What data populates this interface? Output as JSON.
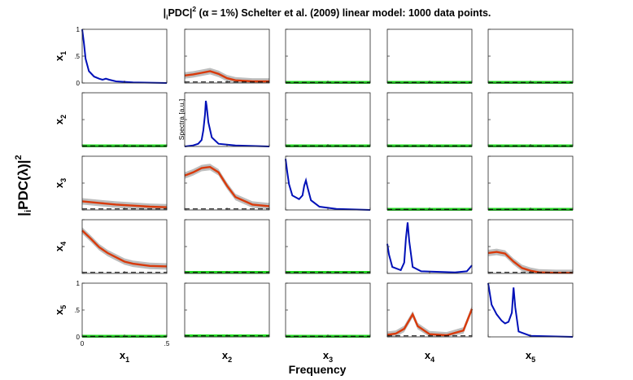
{
  "title": {
    "prefix": "|",
    "sub": "i",
    "mid": "PDC|",
    "sup": "2",
    "rest": " (α = 1%) Schelter et al. (2009) linear model: 1000 data points."
  },
  "ylabel": {
    "pre": "|",
    "sub": "i",
    "main": "PDC(λ)|",
    "sup": "2"
  },
  "xlabel": "Frequency",
  "spectra_label": "Spectra [a.u.]",
  "colors": {
    "pdc": "#d93a0b",
    "ci": "#bdbdbd",
    "spectrum": "#0010b8",
    "not_significant": "#22dd22",
    "threshold": "#000000"
  },
  "chart_data": {
    "type": "line",
    "variables": [
      {
        "base": "x",
        "sub": "1"
      },
      {
        "base": "x",
        "sub": "2"
      },
      {
        "base": "x",
        "sub": "3"
      },
      {
        "base": "x",
        "sub": "4"
      },
      {
        "base": "x",
        "sub": "5"
      }
    ],
    "xlim": [
      0,
      0.5
    ],
    "ylim": [
      0,
      1
    ],
    "xticks": [
      "0",
      ".5"
    ],
    "yticks": [
      "0",
      "0.5",
      "1"
    ],
    "pdc": [
      [
        null,
        [
          [
            0,
            0.14
          ],
          [
            0.05,
            0.16
          ],
          [
            0.1,
            0.19
          ],
          [
            0.15,
            0.22
          ],
          [
            0.2,
            0.17
          ],
          [
            0.25,
            0.09
          ],
          [
            0.3,
            0.05
          ],
          [
            0.4,
            0.03
          ],
          [
            0.5,
            0.03
          ]
        ],
        null,
        null,
        null
      ],
      [
        null,
        null,
        null,
        null,
        null
      ],
      [
        [
          [
            0,
            0.16
          ],
          [
            0.1,
            0.13
          ],
          [
            0.2,
            0.1
          ],
          [
            0.3,
            0.08
          ],
          [
            0.4,
            0.06
          ],
          [
            0.5,
            0.05
          ]
        ],
        [
          [
            0,
            0.64
          ],
          [
            0.05,
            0.7
          ],
          [
            0.1,
            0.78
          ],
          [
            0.15,
            0.8
          ],
          [
            0.2,
            0.7
          ],
          [
            0.25,
            0.45
          ],
          [
            0.3,
            0.24
          ],
          [
            0.4,
            0.1
          ],
          [
            0.5,
            0.07
          ]
        ],
        null,
        null,
        null
      ],
      [
        [
          [
            0,
            0.8
          ],
          [
            0.05,
            0.65
          ],
          [
            0.1,
            0.49
          ],
          [
            0.15,
            0.38
          ],
          [
            0.2,
            0.3
          ],
          [
            0.25,
            0.22
          ],
          [
            0.3,
            0.18
          ],
          [
            0.4,
            0.14
          ],
          [
            0.5,
            0.13
          ]
        ],
        null,
        null,
        null,
        [
          [
            0,
            0.38
          ],
          [
            0.05,
            0.4
          ],
          [
            0.1,
            0.37
          ],
          [
            0.15,
            0.22
          ],
          [
            0.2,
            0.1
          ],
          [
            0.25,
            0.05
          ],
          [
            0.3,
            0.02
          ],
          [
            0.4,
            0.01
          ],
          [
            0.5,
            0.01
          ]
        ]
      ],
      [
        null,
        null,
        null,
        [
          [
            0,
            0.04
          ],
          [
            0.05,
            0.06
          ],
          [
            0.1,
            0.15
          ],
          [
            0.15,
            0.42
          ],
          [
            0.18,
            0.2
          ],
          [
            0.25,
            0.05
          ],
          [
            0.35,
            0.03
          ],
          [
            0.45,
            0.12
          ],
          [
            0.5,
            0.52
          ]
        ],
        null
      ]
    ],
    "ci_halfwidth": 0.06,
    "threshold": [
      [
        null,
        0.02,
        0.01,
        0.01,
        0.01
      ],
      [
        0.01,
        null,
        0.01,
        0.01,
        0.01
      ],
      [
        0.02,
        0.02,
        null,
        0.01,
        0.01
      ],
      [
        0.02,
        0.02,
        0.02,
        null,
        0.02
      ],
      [
        0.01,
        0.02,
        0.01,
        0.02,
        null
      ]
    ],
    "spectra": [
      [
        [
          0,
          1.0
        ],
        [
          0.01,
          0.75
        ],
        [
          0.02,
          0.45
        ],
        [
          0.04,
          0.22
        ],
        [
          0.07,
          0.12
        ],
        [
          0.1,
          0.08
        ],
        [
          0.12,
          0.06
        ],
        [
          0.14,
          0.08
        ],
        [
          0.16,
          0.06
        ],
        [
          0.2,
          0.03
        ],
        [
          0.3,
          0.01
        ],
        [
          0.5,
          0.0
        ]
      ],
      [
        [
          0,
          0.0
        ],
        [
          0.05,
          0.02
        ],
        [
          0.08,
          0.05
        ],
        [
          0.1,
          0.12
        ],
        [
          0.11,
          0.3
        ],
        [
          0.12,
          0.6
        ],
        [
          0.125,
          0.85
        ],
        [
          0.13,
          0.75
        ],
        [
          0.14,
          0.45
        ],
        [
          0.16,
          0.17
        ],
        [
          0.2,
          0.05
        ],
        [
          0.3,
          0.02
        ],
        [
          0.5,
          0.0
        ]
      ],
      [
        [
          0,
          0.95
        ],
        [
          0.01,
          0.7
        ],
        [
          0.02,
          0.48
        ],
        [
          0.04,
          0.27
        ],
        [
          0.08,
          0.2
        ],
        [
          0.1,
          0.27
        ],
        [
          0.11,
          0.45
        ],
        [
          0.12,
          0.55
        ],
        [
          0.13,
          0.42
        ],
        [
          0.15,
          0.18
        ],
        [
          0.2,
          0.06
        ],
        [
          0.3,
          0.02
        ],
        [
          0.5,
          0.0
        ]
      ],
      [
        [
          0,
          0.55
        ],
        [
          0.01,
          0.35
        ],
        [
          0.03,
          0.12
        ],
        [
          0.08,
          0.06
        ],
        [
          0.1,
          0.2
        ],
        [
          0.11,
          0.65
        ],
        [
          0.12,
          0.95
        ],
        [
          0.13,
          0.6
        ],
        [
          0.15,
          0.12
        ],
        [
          0.2,
          0.04
        ],
        [
          0.4,
          0.02
        ],
        [
          0.47,
          0.04
        ],
        [
          0.5,
          0.15
        ]
      ],
      [
        [
          0,
          1.0
        ],
        [
          0.01,
          0.8
        ],
        [
          0.02,
          0.6
        ],
        [
          0.05,
          0.42
        ],
        [
          0.08,
          0.3
        ],
        [
          0.1,
          0.25
        ],
        [
          0.12,
          0.28
        ],
        [
          0.14,
          0.45
        ],
        [
          0.15,
          0.92
        ],
        [
          0.16,
          0.55
        ],
        [
          0.18,
          0.1
        ],
        [
          0.25,
          0.02
        ],
        [
          0.5,
          0.0
        ]
      ]
    ]
  }
}
